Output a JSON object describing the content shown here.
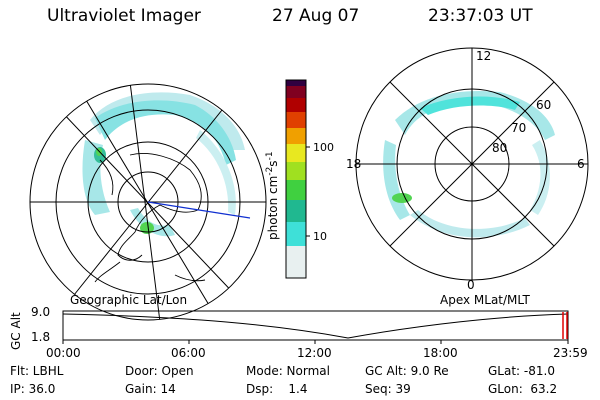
{
  "header": {
    "instrument": "Ultraviolet Imager",
    "date": "27 Aug 07",
    "time": "23:37:03 UT"
  },
  "left_panel": {
    "label": "Geographic Lat/Lon"
  },
  "right_panel": {
    "label": "Apex MLat/MLT",
    "mlt_labels": [
      "12",
      "18",
      "6",
      "0"
    ],
    "lat_labels": [
      "60",
      "70",
      "80"
    ]
  },
  "colorbar": {
    "unit_label": "photon cm",
    "unit_sup1": "-2",
    "unit_mid": "s",
    "unit_sup2": "-1",
    "ticks": [
      "100",
      "10"
    ],
    "scale": "log",
    "colors": [
      "#e8f0f0",
      "#3ee0d8",
      "#20b890",
      "#40d040",
      "#a0e020",
      "#e8e820",
      "#f0a000",
      "#e04000",
      "#b00000",
      "#800020",
      "#300040"
    ]
  },
  "altitude_plot": {
    "ylabel": "GC Alt",
    "yticks": [
      "9.0",
      "1.8"
    ],
    "xticks": [
      "00:00",
      "06:00",
      "12:00",
      "18:00",
      "23:59"
    ],
    "marker_color": "#e00000"
  },
  "info": {
    "row1": [
      "Flt: LBHL",
      "Door: Open",
      "Mode: Normal",
      "GC Alt: 9.0 Re",
      "GLat: -81.0"
    ],
    "row2": [
      "IP: 36.0",
      "Gain: 14",
      "Dsp:    1.4",
      "Seq: 39",
      "GLon:  63.2"
    ]
  }
}
